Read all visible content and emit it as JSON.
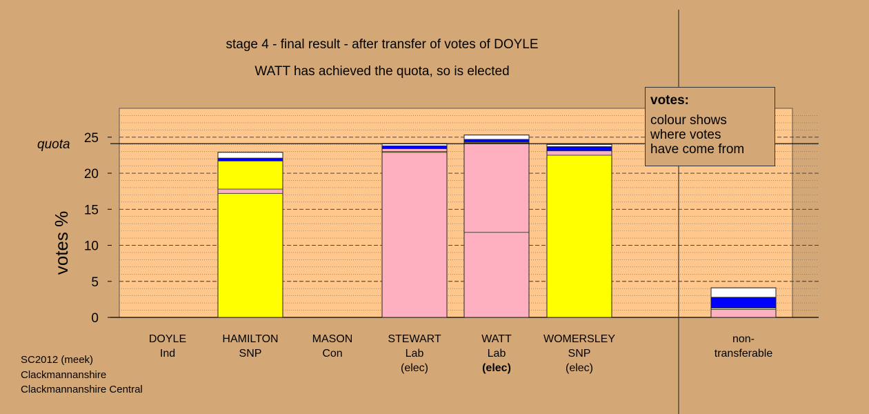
{
  "header": {
    "title": "stage 4 - final result - after transfer of votes of DOYLE",
    "subtitle": "WATT has achieved the quota, so is elected"
  },
  "legend": {
    "title": "votes:",
    "lines": [
      "colour shows",
      "where votes",
      "have come from"
    ]
  },
  "footer": {
    "lines": [
      "SC2012 (meek)",
      "Clackmannanshire",
      "Clackmannanshire Central"
    ]
  },
  "colors": {
    "background": "#d4a876",
    "plot_background": "#ffc78c",
    "snp": "#ffff00",
    "lab": "#ffb0c0",
    "con": "#0000ff",
    "ind": "#ffffff"
  },
  "chart_data": {
    "type": "bar",
    "stacked": true,
    "ylabel": "votes %",
    "ylim": [
      0,
      29
    ],
    "yticks": [
      0,
      5,
      10,
      15,
      20,
      25
    ],
    "quota": 24.1,
    "quota_label": "quota",
    "categories": [
      {
        "name": "DOYLE",
        "party": "Ind",
        "status": ""
      },
      {
        "name": "HAMILTON",
        "party": "SNP",
        "status": ""
      },
      {
        "name": "MASON",
        "party": "Con",
        "status": ""
      },
      {
        "name": "STEWART",
        "party": "Lab",
        "status": "(elec)"
      },
      {
        "name": "WATT",
        "party": "Lab",
        "status": "(elec)",
        "status_bold": true
      },
      {
        "name": "WOMERSLEY",
        "party": "SNP",
        "status": "(elec)"
      },
      {
        "name": "non-",
        "party": "transferable",
        "status": ""
      }
    ],
    "bars": [
      {
        "category": "DOYLE",
        "segments": []
      },
      {
        "category": "HAMILTON",
        "segments": [
          {
            "source": "SNP",
            "value": 17.2,
            "color": "#ffff00"
          },
          {
            "source": "Lab",
            "value": 0.6,
            "color": "#ffb0c0"
          },
          {
            "source": "SNP",
            "value": 3.9,
            "color": "#ffff00"
          },
          {
            "source": "Con",
            "value": 0.4,
            "color": "#0000ff"
          },
          {
            "source": "Ind",
            "value": 0.8,
            "color": "#ffffff"
          }
        ]
      },
      {
        "category": "MASON",
        "segments": []
      },
      {
        "category": "STEWART",
        "segments": [
          {
            "source": "Lab",
            "value": 22.9,
            "color": "#ffb0c0"
          },
          {
            "source": "SNP",
            "value": 0.1,
            "color": "#ffff00"
          },
          {
            "source": "Lab",
            "value": 0.4,
            "color": "#ffb0c0"
          },
          {
            "source": "Con",
            "value": 0.4,
            "color": "#0000ff"
          },
          {
            "source": "Ind",
            "value": 0.3,
            "color": "#ffffff"
          }
        ]
      },
      {
        "category": "WATT",
        "segments": [
          {
            "source": "Lab",
            "value": 11.8,
            "color": "#ffb0c0"
          },
          {
            "source": "Lab",
            "value": 12.4,
            "color": "#ffb0c0"
          },
          {
            "source": "SNP",
            "value": 0.1,
            "color": "#ffff00"
          },
          {
            "source": "Con",
            "value": 0.4,
            "color": "#0000ff"
          },
          {
            "source": "Ind",
            "value": 0.6,
            "color": "#ffffff"
          }
        ]
      },
      {
        "category": "WOMERSLEY",
        "segments": [
          {
            "source": "SNP",
            "value": 22.5,
            "color": "#ffff00"
          },
          {
            "source": "Lab",
            "value": 0.6,
            "color": "#ffb0c0"
          },
          {
            "source": "Con",
            "value": 0.6,
            "color": "#0000ff"
          },
          {
            "source": "Ind",
            "value": 0.3,
            "color": "#ffffff"
          }
        ]
      },
      {
        "category": "non-transferable",
        "segments": [
          {
            "source": "Lab",
            "value": 1.1,
            "color": "#ffb0c0"
          },
          {
            "source": "SNP",
            "value": 0.2,
            "color": "#ffff00"
          },
          {
            "source": "Con",
            "value": 1.5,
            "color": "#0000ff"
          },
          {
            "source": "Ind",
            "value": 1.3,
            "color": "#ffffff"
          }
        ]
      }
    ]
  }
}
